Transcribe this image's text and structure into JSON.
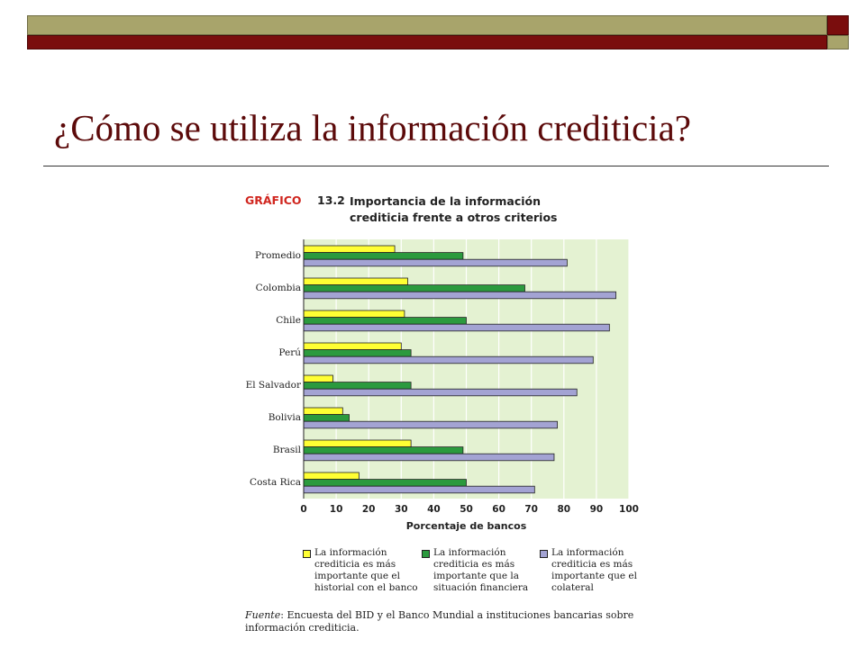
{
  "slide": {
    "title": "¿Cómo se utiliza la información crediticia?"
  },
  "figure": {
    "label": "GRÁFICO",
    "number": "13.2",
    "title_line1": "Importancia de la información",
    "title_line2": "crediticia frente a otros criterios",
    "source_label": "Fuente",
    "source_text": ": Encuesta del BID y el Banco Mundial a instituciones bancarias sobre información crediticia."
  },
  "colors": {
    "accent_olive": "#a8a46b",
    "accent_maroon": "#7a0d0d",
    "plot_background": "#e4f2d2",
    "series_yellow": "#ffff33",
    "series_green": "#2b9a3e",
    "series_lavender": "#a3a3d3"
  },
  "chart_data": {
    "type": "bar",
    "orientation": "horizontal",
    "categories": [
      "Promedio",
      "Colombia",
      "Chile",
      "Perú",
      "El Salvador",
      "Bolivia",
      "Brasil",
      "Costa Rica"
    ],
    "series": [
      {
        "name": "La información crediticia es más importante que el historial con el banco",
        "color": "#ffff33",
        "values": [
          28,
          32,
          31,
          30,
          9,
          12,
          33,
          17
        ]
      },
      {
        "name": "La información crediticia es más importante que la situación financiera",
        "color": "#2b9a3e",
        "values": [
          49,
          68,
          50,
          33,
          33,
          14,
          49,
          50
        ]
      },
      {
        "name": "La información crediticia es más importante que el colateral",
        "color": "#a3a3d3",
        "values": [
          81,
          96,
          94,
          89,
          84,
          78,
          77,
          71
        ]
      }
    ],
    "xlabel": "Porcentaje de bancos",
    "xlim": [
      0,
      100
    ],
    "xticks": [
      "0",
      "10",
      "20",
      "30",
      "40",
      "50",
      "60",
      "70",
      "80",
      "90",
      "100"
    ],
    "grid": true,
    "legend_position": "bottom"
  }
}
